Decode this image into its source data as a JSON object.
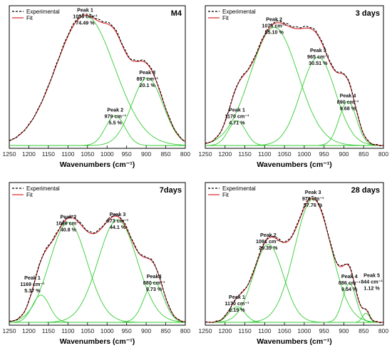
{
  "chart_data": [
    {
      "type": "line",
      "title": "M4",
      "xlabel": "Wavenumbers (cm⁻¹)",
      "xlim": [
        1250,
        800
      ],
      "xticks": [
        "1250",
        "1200",
        "1150",
        "1100",
        "1050",
        "1000",
        "950",
        "900",
        "850",
        "800"
      ],
      "legend": [
        "Experimental",
        "Fit"
      ],
      "peaks": [
        {
          "name": "Peak 1",
          "center": 1056,
          "label": "1056 cm⁻¹",
          "area": "74.49 %",
          "height": 1.0,
          "width": 75
        },
        {
          "name": "Peak 2",
          "center": 979,
          "label": "979 cm⁻¹",
          "area": "5.5 %",
          "height": 0.23,
          "width": 25
        },
        {
          "name": "Peak 3",
          "center": 897,
          "label": "897 cm⁻¹",
          "area": "20.1 %",
          "height": 0.52,
          "width": 40
        }
      ]
    },
    {
      "type": "line",
      "title": "3 days",
      "xlabel": "Wavenumbers (cm⁻¹)",
      "xlim": [
        1250,
        800
      ],
      "xticks": [
        "1250",
        "1200",
        "1150",
        "1100",
        "1050",
        "1000",
        "950",
        "900",
        "850",
        "800"
      ],
      "legend": [
        "Experimental",
        "Fit"
      ],
      "peaks": [
        {
          "name": "Peak 1",
          "center": 1170,
          "label": "1170 cm⁻¹",
          "area": "4.71 %",
          "height": 0.19,
          "width": 22
        },
        {
          "name": "Peak 2",
          "center": 1076,
          "label": "1076 cm⁻¹",
          "area": "55.10 %",
          "height": 0.91,
          "width": 60
        },
        {
          "name": "Peak 3",
          "center": 965,
          "label": "965 cm⁻¹",
          "area": "30.51 %",
          "height": 0.68,
          "width": 44
        },
        {
          "name": "Peak 4",
          "center": 890,
          "label": "890 cm⁻¹",
          "area": "9.68 %",
          "height": 0.34,
          "width": 22
        }
      ]
    },
    {
      "type": "line",
      "title": "7days",
      "xlabel": "Wavenumbers (cm⁻¹)",
      "xlim": [
        1250,
        800
      ],
      "xticks": [
        "1250",
        "1200",
        "1150",
        "1100",
        "1050",
        "1000",
        "950",
        "900",
        "850",
        "800"
      ],
      "legend": [
        "Experimental",
        "Fit"
      ],
      "peaks": [
        {
          "name": "Peak 1",
          "center": 1169,
          "label": "1169 cm⁻¹",
          "area": "5.37 %",
          "height": 0.21,
          "width": 22
        },
        {
          "name": "Peak 2",
          "center": 1099,
          "label": "1099 cm⁻¹",
          "area": "40.8 %",
          "height": 0.77,
          "width": 48
        },
        {
          "name": "Peak 3",
          "center": 973,
          "label": "973 cm⁻¹",
          "area": "44.1 %",
          "height": 0.79,
          "width": 50
        },
        {
          "name": "Peak4",
          "center": 880,
          "label": "880 cm⁻¹",
          "area": "9.73 %",
          "height": 0.31,
          "width": 25
        }
      ]
    },
    {
      "type": "line",
      "title": "28 days",
      "xlabel": "Wavenumbers (cm⁻¹)",
      "xlim": [
        1250,
        800
      ],
      "xticks": [
        "1250",
        "1200",
        "1150",
        "1100",
        "1050",
        "1000",
        "950",
        "900",
        "850",
        "800"
      ],
      "legend": [
        "Experimental",
        "Fit"
      ],
      "peaks": [
        {
          "name": "Peak 1",
          "center": 1170,
          "label": "1170 cm⁻¹",
          "area": "2.19 %",
          "height": 0.12,
          "width": 20
        },
        {
          "name": "Peak 2",
          "center": 1091,
          "label": "1091 cm⁻¹",
          "area": "29.39 %",
          "height": 0.6,
          "width": 38
        },
        {
          "name": "Peak 3",
          "center": 978,
          "label": "978 cm⁻¹",
          "area": "57.76 %",
          "height": 0.95,
          "width": 46
        },
        {
          "name": "Peak 4",
          "center": 886,
          "label": "886 cm⁻¹",
          "area": "9.54 %",
          "height": 0.3,
          "width": 17
        },
        {
          "name": "Peak 5",
          "center": 844,
          "label": "844 cm⁻¹",
          "area": "1.12 %",
          "height": 0.07,
          "width": 9
        }
      ]
    }
  ],
  "colors": {
    "experimental": "#000000",
    "fit": "#d62728",
    "components": "#33cc33"
  }
}
